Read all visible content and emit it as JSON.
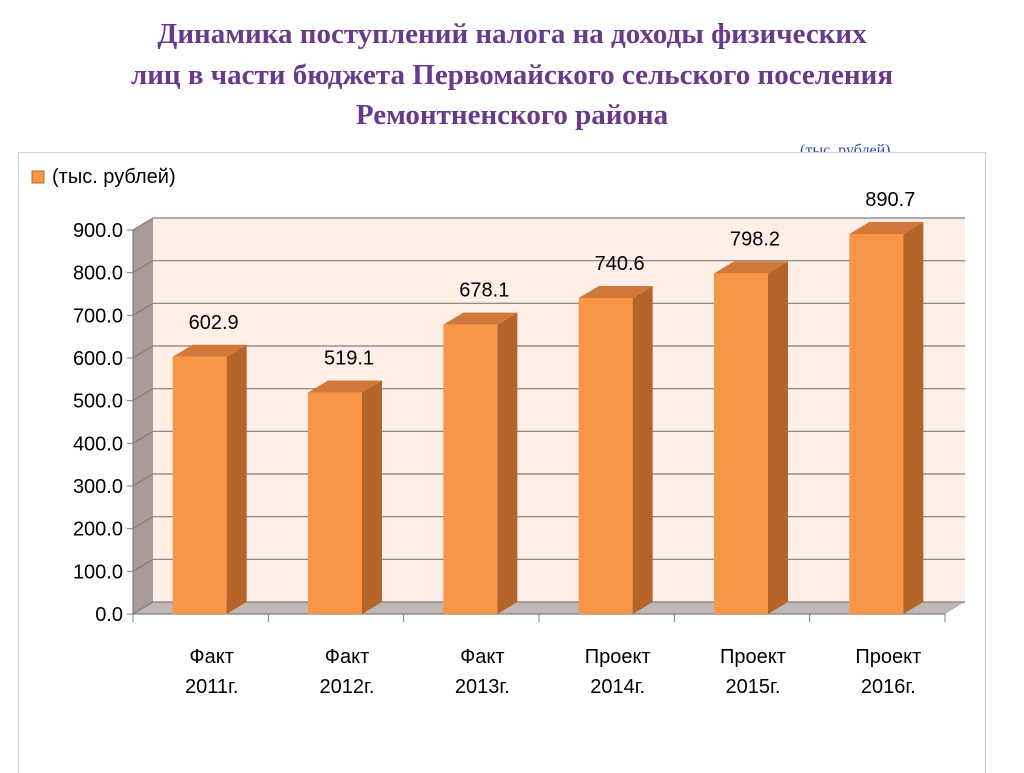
{
  "title": {
    "line1": "Динамика поступлений налога на доходы физических",
    "line2": "лиц в части бюджета Первомайского сельского поселения",
    "line3": "Ремонтненского  района"
  },
  "note_clipped": "(тыс. рублей)",
  "chart_data": {
    "type": "bar",
    "style": "3d-column",
    "categories": [
      [
        "Факт",
        "2011г."
      ],
      [
        "Факт",
        "2012г."
      ],
      [
        "Факт",
        "2013г."
      ],
      [
        "Проект",
        "2014г."
      ],
      [
        "Проект",
        "2015г."
      ],
      [
        "Проект",
        "2016г."
      ]
    ],
    "series": [
      {
        "name": "(тыс. рублей)",
        "values": [
          602.9,
          519.1,
          678.1,
          740.6,
          798.2,
          890.7
        ]
      }
    ],
    "data_labels": [
      "602.9",
      "519.1",
      "678.1",
      "740.6",
      "798.2",
      "890.7"
    ],
    "yticks": [
      "0.0",
      "100.0",
      "200.0",
      "300.0",
      "400.0",
      "500.0",
      "600.0",
      "700.0",
      "800.0",
      "900.0"
    ],
    "ylim": [
      0,
      900
    ],
    "grid": true,
    "legend": "top-left",
    "colors": {
      "bar_front": "#f79646",
      "bar_side": "#b5652a",
      "bar_top": "#d0793a",
      "wall": "#fdeee6",
      "wall_side": "#a89a96",
      "floor": "#c0b8b6"
    }
  }
}
